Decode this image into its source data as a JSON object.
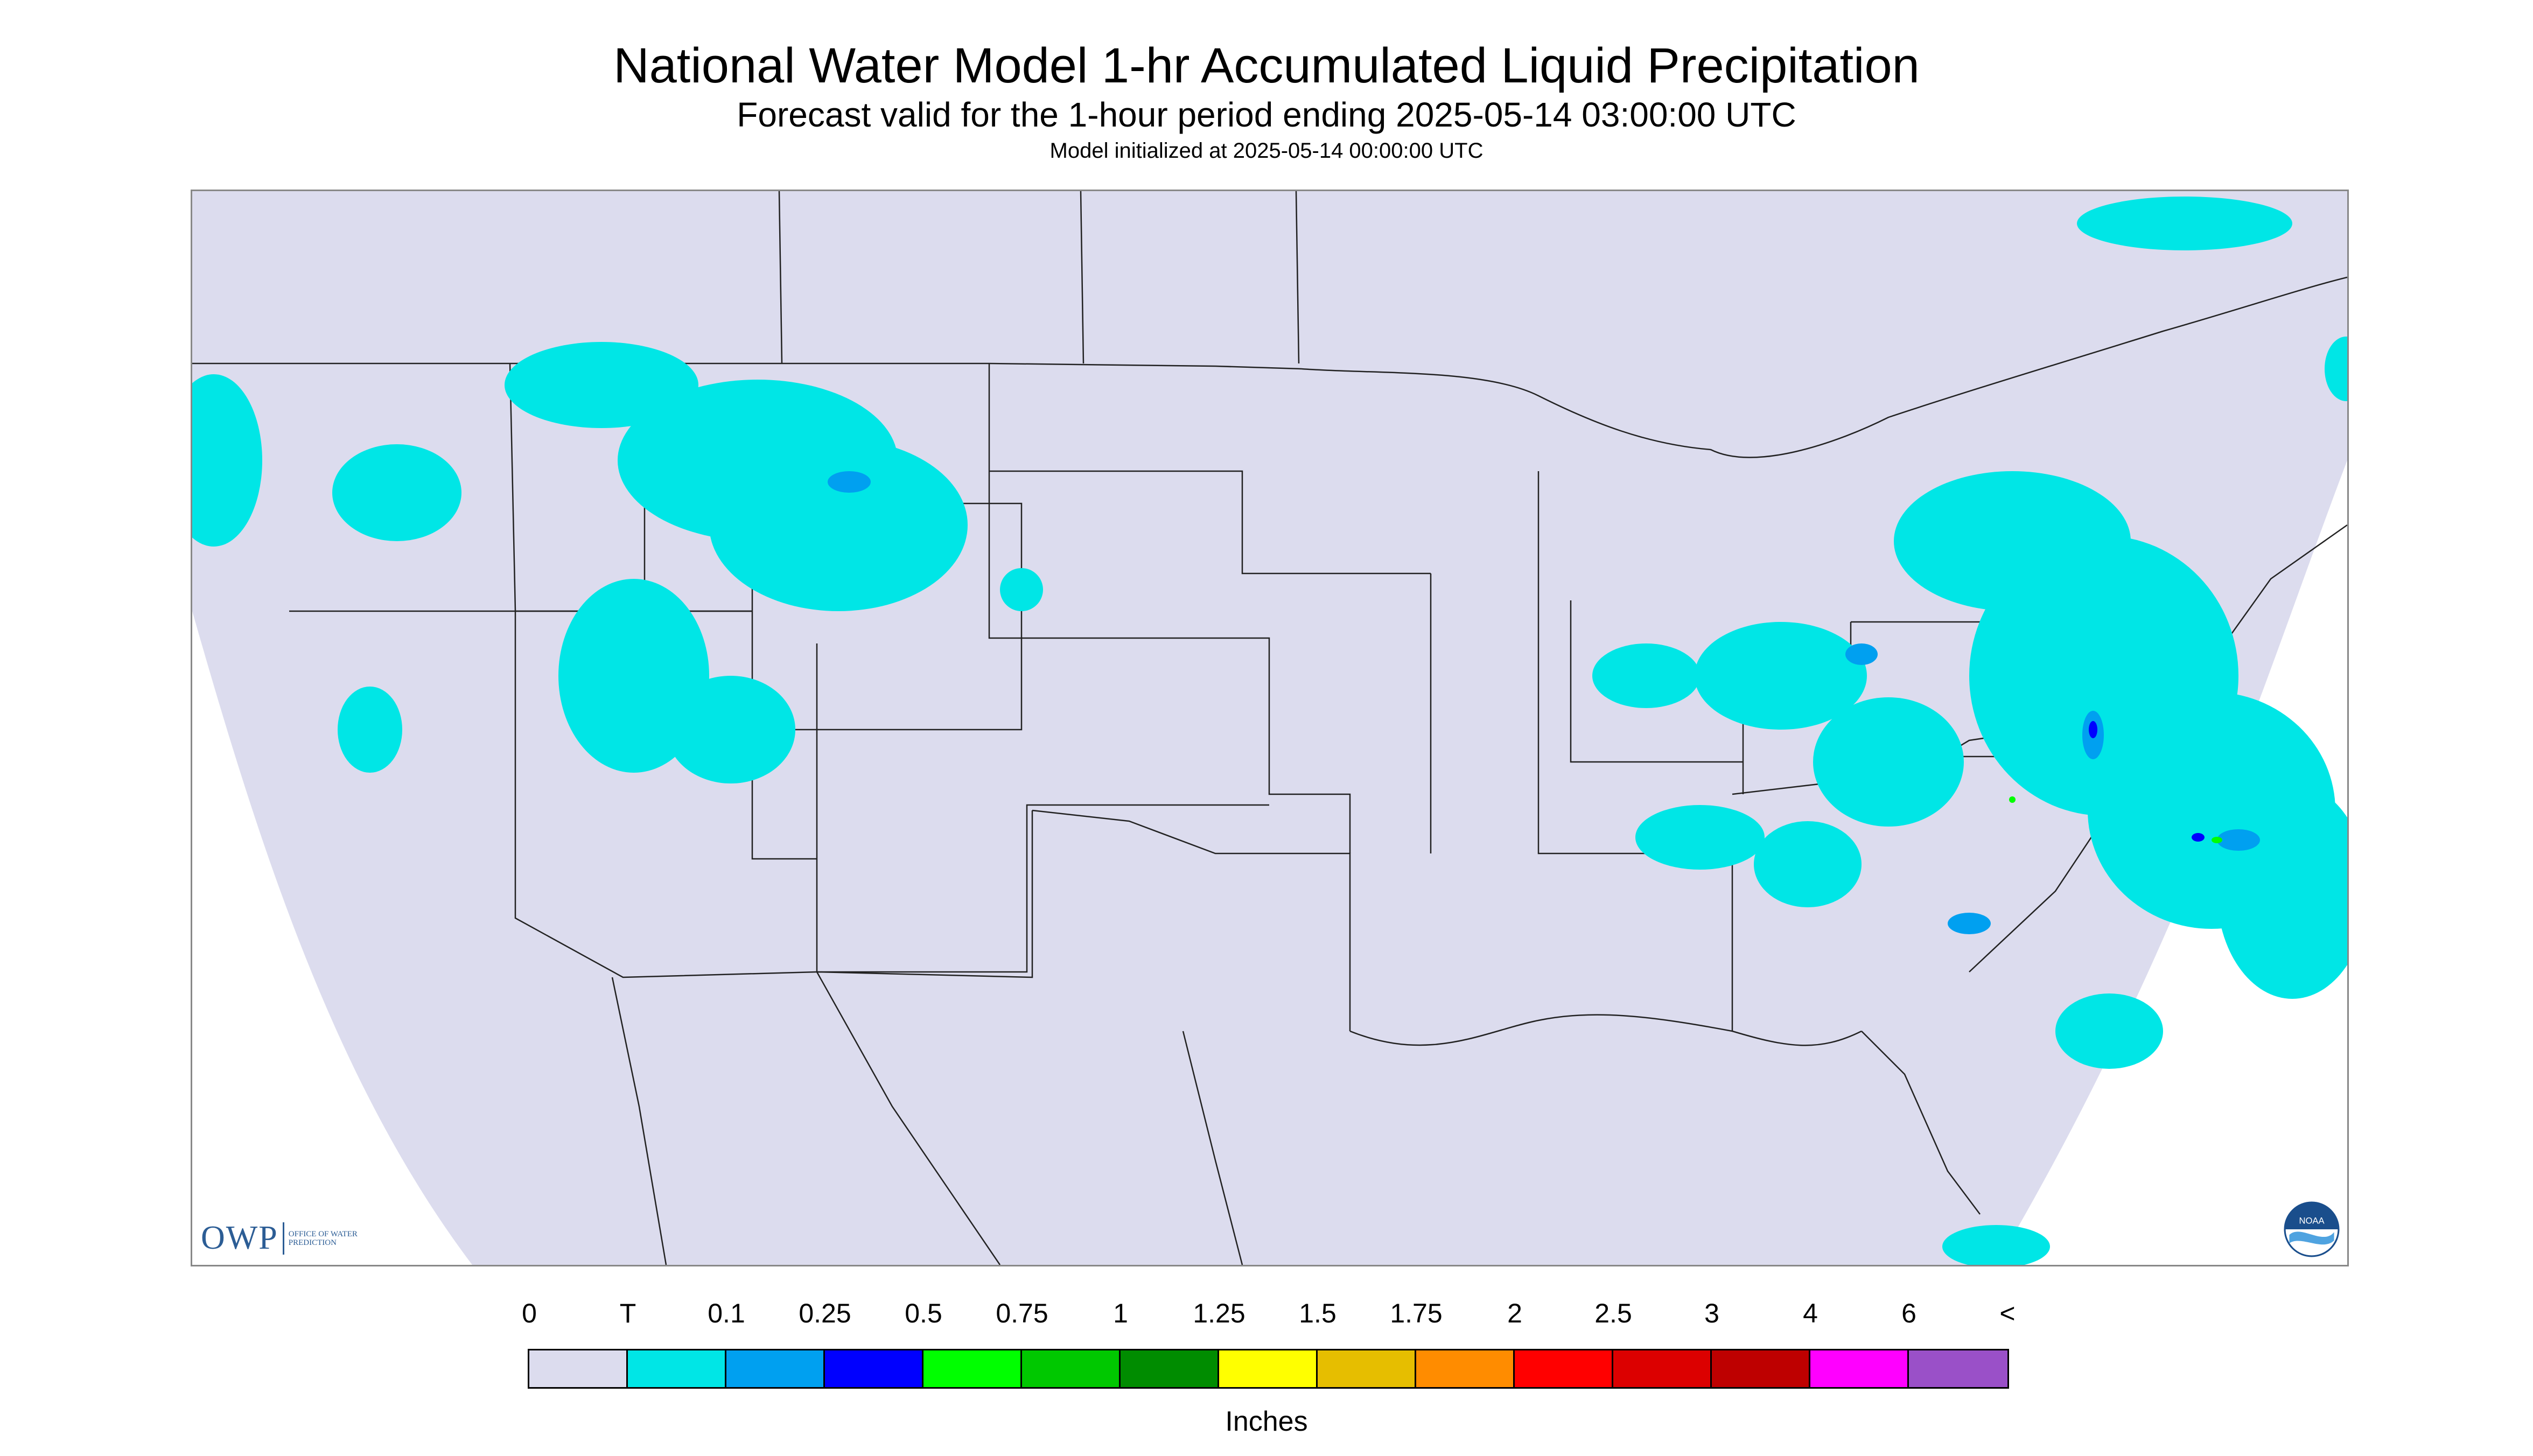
{
  "title": "National Water Model 1-hr Accumulated Liquid Precipitation",
  "subtitle": "Forecast valid for the 1-hour period ending 2025-05-14 03:00:00 UTC",
  "init_line": "Model initialized at 2025-05-14 00:00:00 UTC",
  "logos": {
    "owp_text": "OWP",
    "owp_small": "Office of Water Prediction",
    "noaa_text": "NOAA"
  },
  "legend": {
    "labels": [
      "0",
      "T",
      "0.1",
      "0.25",
      "0.5",
      "0.75",
      "1",
      "1.25",
      "1.5",
      "1.75",
      "2",
      "2.5",
      "3",
      "4",
      "6",
      "<"
    ],
    "colors": [
      "#dcdcee",
      "#00e6e6",
      "#00a0f0",
      "#0000ff",
      "#00ff00",
      "#00c800",
      "#008c00",
      "#ffff00",
      "#e6be00",
      "#ff8c00",
      "#ff0000",
      "#dc0000",
      "#be0000",
      "#ff00ff",
      "#9a50c8"
    ],
    "units": "Inches"
  },
  "map_colors": {
    "domain_fill": "#dcdcee",
    "outside_fill": "#ffffff",
    "border_line": "#222222",
    "trace_precip": "#00e6e6",
    "light_precip": "#00a0f0",
    "moderate_precip": "#0000ff",
    "heavy_precip": "#00ff00"
  }
}
